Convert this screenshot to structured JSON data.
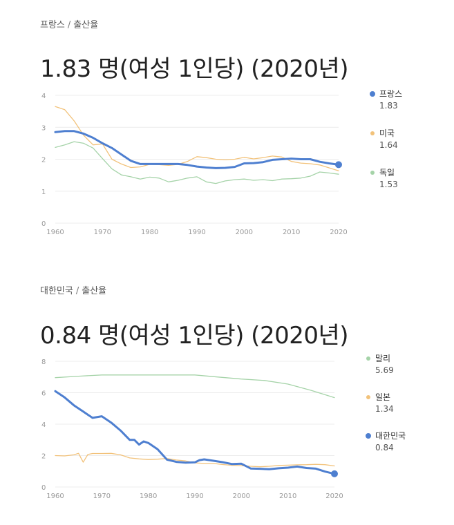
{
  "chart_data": [
    {
      "type": "line",
      "breadcrumb": {
        "country": "프랑스",
        "separator": "/",
        "metric": "출산율"
      },
      "headline": "1.83 명(여성 1인당) (2020년)",
      "ylim": [
        0,
        4
      ],
      "yticks": [
        "0",
        "1",
        "2",
        "3",
        "4"
      ],
      "xlim": [
        1960,
        2020
      ],
      "xticks": [
        "1960",
        "1970",
        "1980",
        "1990",
        "2000",
        "2010",
        "2020"
      ],
      "grid": true,
      "legend_position": "right",
      "series": [
        {
          "name": "프랑스",
          "last_value": "1.83",
          "color": "#4e7fd0",
          "highlight": true,
          "x": [
            1960,
            1962,
            1964,
            1966,
            1968,
            1970,
            1972,
            1974,
            1976,
            1978,
            1980,
            1982,
            1984,
            1986,
            1988,
            1990,
            1992,
            1994,
            1996,
            1998,
            2000,
            2002,
            2004,
            2006,
            2008,
            2010,
            2012,
            2014,
            2016,
            2018,
            2020
          ],
          "y": [
            2.85,
            2.88,
            2.88,
            2.8,
            2.67,
            2.5,
            2.35,
            2.15,
            1.95,
            1.85,
            1.85,
            1.85,
            1.85,
            1.85,
            1.82,
            1.77,
            1.74,
            1.72,
            1.73,
            1.76,
            1.87,
            1.88,
            1.91,
            1.98,
            2.0,
            2.02,
            2.0,
            2.0,
            1.92,
            1.87,
            1.83
          ]
        },
        {
          "name": "미국",
          "last_value": "1.64",
          "color": "#f2c27a",
          "highlight": false,
          "x": [
            1960,
            1962,
            1964,
            1966,
            1968,
            1970,
            1972,
            1974,
            1976,
            1978,
            1980,
            1982,
            1984,
            1986,
            1988,
            1990,
            1992,
            1994,
            1996,
            1998,
            2000,
            2002,
            2004,
            2006,
            2008,
            2010,
            2012,
            2014,
            2016,
            2018,
            2020
          ],
          "y": [
            3.65,
            3.55,
            3.2,
            2.75,
            2.45,
            2.48,
            2.0,
            1.85,
            1.74,
            1.76,
            1.84,
            1.83,
            1.81,
            1.84,
            1.93,
            2.08,
            2.05,
            2.0,
            1.98,
            2.0,
            2.06,
            2.01,
            2.05,
            2.1,
            2.07,
            1.93,
            1.88,
            1.86,
            1.82,
            1.73,
            1.64
          ]
        },
        {
          "name": "독일",
          "last_value": "1.53",
          "color": "#a5d3a8",
          "highlight": false,
          "x": [
            1960,
            1962,
            1964,
            1966,
            1968,
            1970,
            1972,
            1974,
            1976,
            1978,
            1980,
            1982,
            1984,
            1986,
            1988,
            1990,
            1992,
            1994,
            1996,
            1998,
            2000,
            2002,
            2004,
            2006,
            2008,
            2010,
            2012,
            2014,
            2016,
            2018,
            2020
          ],
          "y": [
            2.37,
            2.45,
            2.55,
            2.5,
            2.35,
            2.02,
            1.7,
            1.51,
            1.45,
            1.38,
            1.44,
            1.41,
            1.29,
            1.34,
            1.41,
            1.45,
            1.29,
            1.24,
            1.32,
            1.36,
            1.38,
            1.34,
            1.36,
            1.33,
            1.38,
            1.39,
            1.41,
            1.47,
            1.6,
            1.57,
            1.53
          ]
        }
      ]
    },
    {
      "type": "line",
      "breadcrumb": {
        "country": "대한민국",
        "separator": "/",
        "metric": "출산율"
      },
      "headline": "0.84 명(여성 1인당) (2020년)",
      "ylim": [
        0,
        8
      ],
      "yticks": [
        "0",
        "2",
        "4",
        "6",
        "8"
      ],
      "xlim": [
        1960,
        2020
      ],
      "xticks": [
        "1960",
        "1970",
        "1980",
        "1990",
        "2000",
        "2010",
        "2020"
      ],
      "grid": true,
      "legend_position": "right",
      "series": [
        {
          "name": "말리",
          "last_value": "5.69",
          "color": "#a5d3a8",
          "highlight": false,
          "x": [
            1960,
            1965,
            1970,
            1975,
            1980,
            1985,
            1990,
            1995,
            2000,
            2005,
            2010,
            2015,
            2020
          ],
          "y": [
            6.96,
            7.05,
            7.13,
            7.13,
            7.13,
            7.13,
            7.13,
            7.0,
            6.87,
            6.78,
            6.55,
            6.15,
            5.69
          ]
        },
        {
          "name": "일본",
          "last_value": "1.34",
          "color": "#f2c27a",
          "highlight": false,
          "x": [
            1960,
            1962,
            1964,
            1965,
            1966,
            1967,
            1968,
            1970,
            1972,
            1974,
            1976,
            1978,
            1980,
            1982,
            1984,
            1986,
            1988,
            1990,
            1992,
            1994,
            1996,
            1998,
            2000,
            2002,
            2004,
            2006,
            2008,
            2010,
            2012,
            2014,
            2016,
            2018,
            2020
          ],
          "y": [
            2.0,
            1.98,
            2.05,
            2.14,
            1.58,
            2.07,
            2.13,
            2.13,
            2.14,
            2.05,
            1.85,
            1.79,
            1.75,
            1.77,
            1.81,
            1.72,
            1.66,
            1.54,
            1.5,
            1.5,
            1.43,
            1.38,
            1.36,
            1.32,
            1.29,
            1.32,
            1.37,
            1.39,
            1.41,
            1.42,
            1.44,
            1.42,
            1.34
          ]
        },
        {
          "name": "대한민국",
          "last_value": "0.84",
          "color": "#4e7fd0",
          "highlight": true,
          "x": [
            1960,
            1962,
            1964,
            1966,
            1968,
            1970,
            1972,
            1974,
            1976,
            1977,
            1978,
            1979,
            1980,
            1982,
            1984,
            1986,
            1988,
            1990,
            1991,
            1992,
            1994,
            1996,
            1998,
            2000,
            2002,
            2004,
            2006,
            2008,
            2010,
            2012,
            2014,
            2016,
            2018,
            2020
          ],
          "y": [
            6.1,
            5.7,
            5.2,
            4.8,
            4.4,
            4.5,
            4.1,
            3.6,
            3.0,
            3.0,
            2.7,
            2.9,
            2.8,
            2.4,
            1.74,
            1.6,
            1.55,
            1.57,
            1.71,
            1.76,
            1.67,
            1.58,
            1.46,
            1.48,
            1.18,
            1.16,
            1.13,
            1.19,
            1.23,
            1.3,
            1.21,
            1.17,
            0.98,
            0.84
          ]
        }
      ]
    }
  ]
}
